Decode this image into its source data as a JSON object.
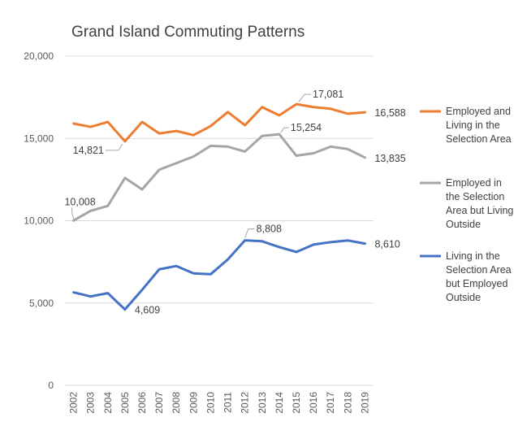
{
  "chart_data": {
    "type": "line",
    "title": "Grand Island Commuting Patterns",
    "xlabel": "",
    "ylabel": "",
    "ylim": [
      0,
      20000
    ],
    "yticks": [
      0,
      5000,
      10000,
      15000,
      20000
    ],
    "ytick_labels": [
      "0",
      "5,000",
      "10,000",
      "15,000",
      "20,000"
    ],
    "grid": true,
    "legend_position": "right",
    "categories": [
      "2002",
      "2003",
      "2004",
      "2005",
      "2006",
      "2007",
      "2008",
      "2009",
      "2010",
      "2011",
      "2012",
      "2013",
      "2014",
      "2015",
      "2016",
      "2017",
      "2018",
      "2019"
    ],
    "series": [
      {
        "name": "Employed and Living in the Selection Area",
        "legend_lines": [
          "Employed and",
          "Living in the",
          "Selection Area"
        ],
        "color": "#ED7D31",
        "values": [
          15900,
          15700,
          16000,
          14821,
          16000,
          15300,
          15450,
          15200,
          15750,
          16600,
          15800,
          16900,
          16400,
          17081,
          16900,
          16800,
          16500,
          16588
        ],
        "labels": [
          {
            "index": 3,
            "text": "14,821"
          },
          {
            "index": 13,
            "text": "17,081"
          },
          {
            "index": 17,
            "text": "16,588"
          }
        ]
      },
      {
        "name": "Employed in the Selection Area but Living Outside",
        "legend_lines": [
          "Employed in",
          "the Selection",
          "Area but Living",
          "Outside"
        ],
        "color": "#A5A5A5",
        "values": [
          10008,
          10600,
          10900,
          12600,
          11900,
          13100,
          13500,
          13900,
          14550,
          14500,
          14200,
          15150,
          15254,
          13950,
          14100,
          14500,
          14350,
          13835
        ],
        "labels": [
          {
            "index": 0,
            "text": "10,008"
          },
          {
            "index": 12,
            "text": "15,254"
          },
          {
            "index": 17,
            "text": "13,835"
          }
        ]
      },
      {
        "name": "Living in the Selection Area but Employed Outside",
        "legend_lines": [
          "Living in the",
          "Selection Area",
          "but Employed",
          "Outside"
        ],
        "color": "#4472C4",
        "values": [
          5650,
          5400,
          5600,
          4609,
          5800,
          7050,
          7250,
          6800,
          6750,
          7650,
          8808,
          8750,
          8400,
          8100,
          8550,
          8700,
          8800,
          8610
        ],
        "labels": [
          {
            "index": 3,
            "text": "4,609"
          },
          {
            "index": 10,
            "text": "8,808"
          },
          {
            "index": 17,
            "text": "8,610"
          }
        ]
      }
    ]
  }
}
